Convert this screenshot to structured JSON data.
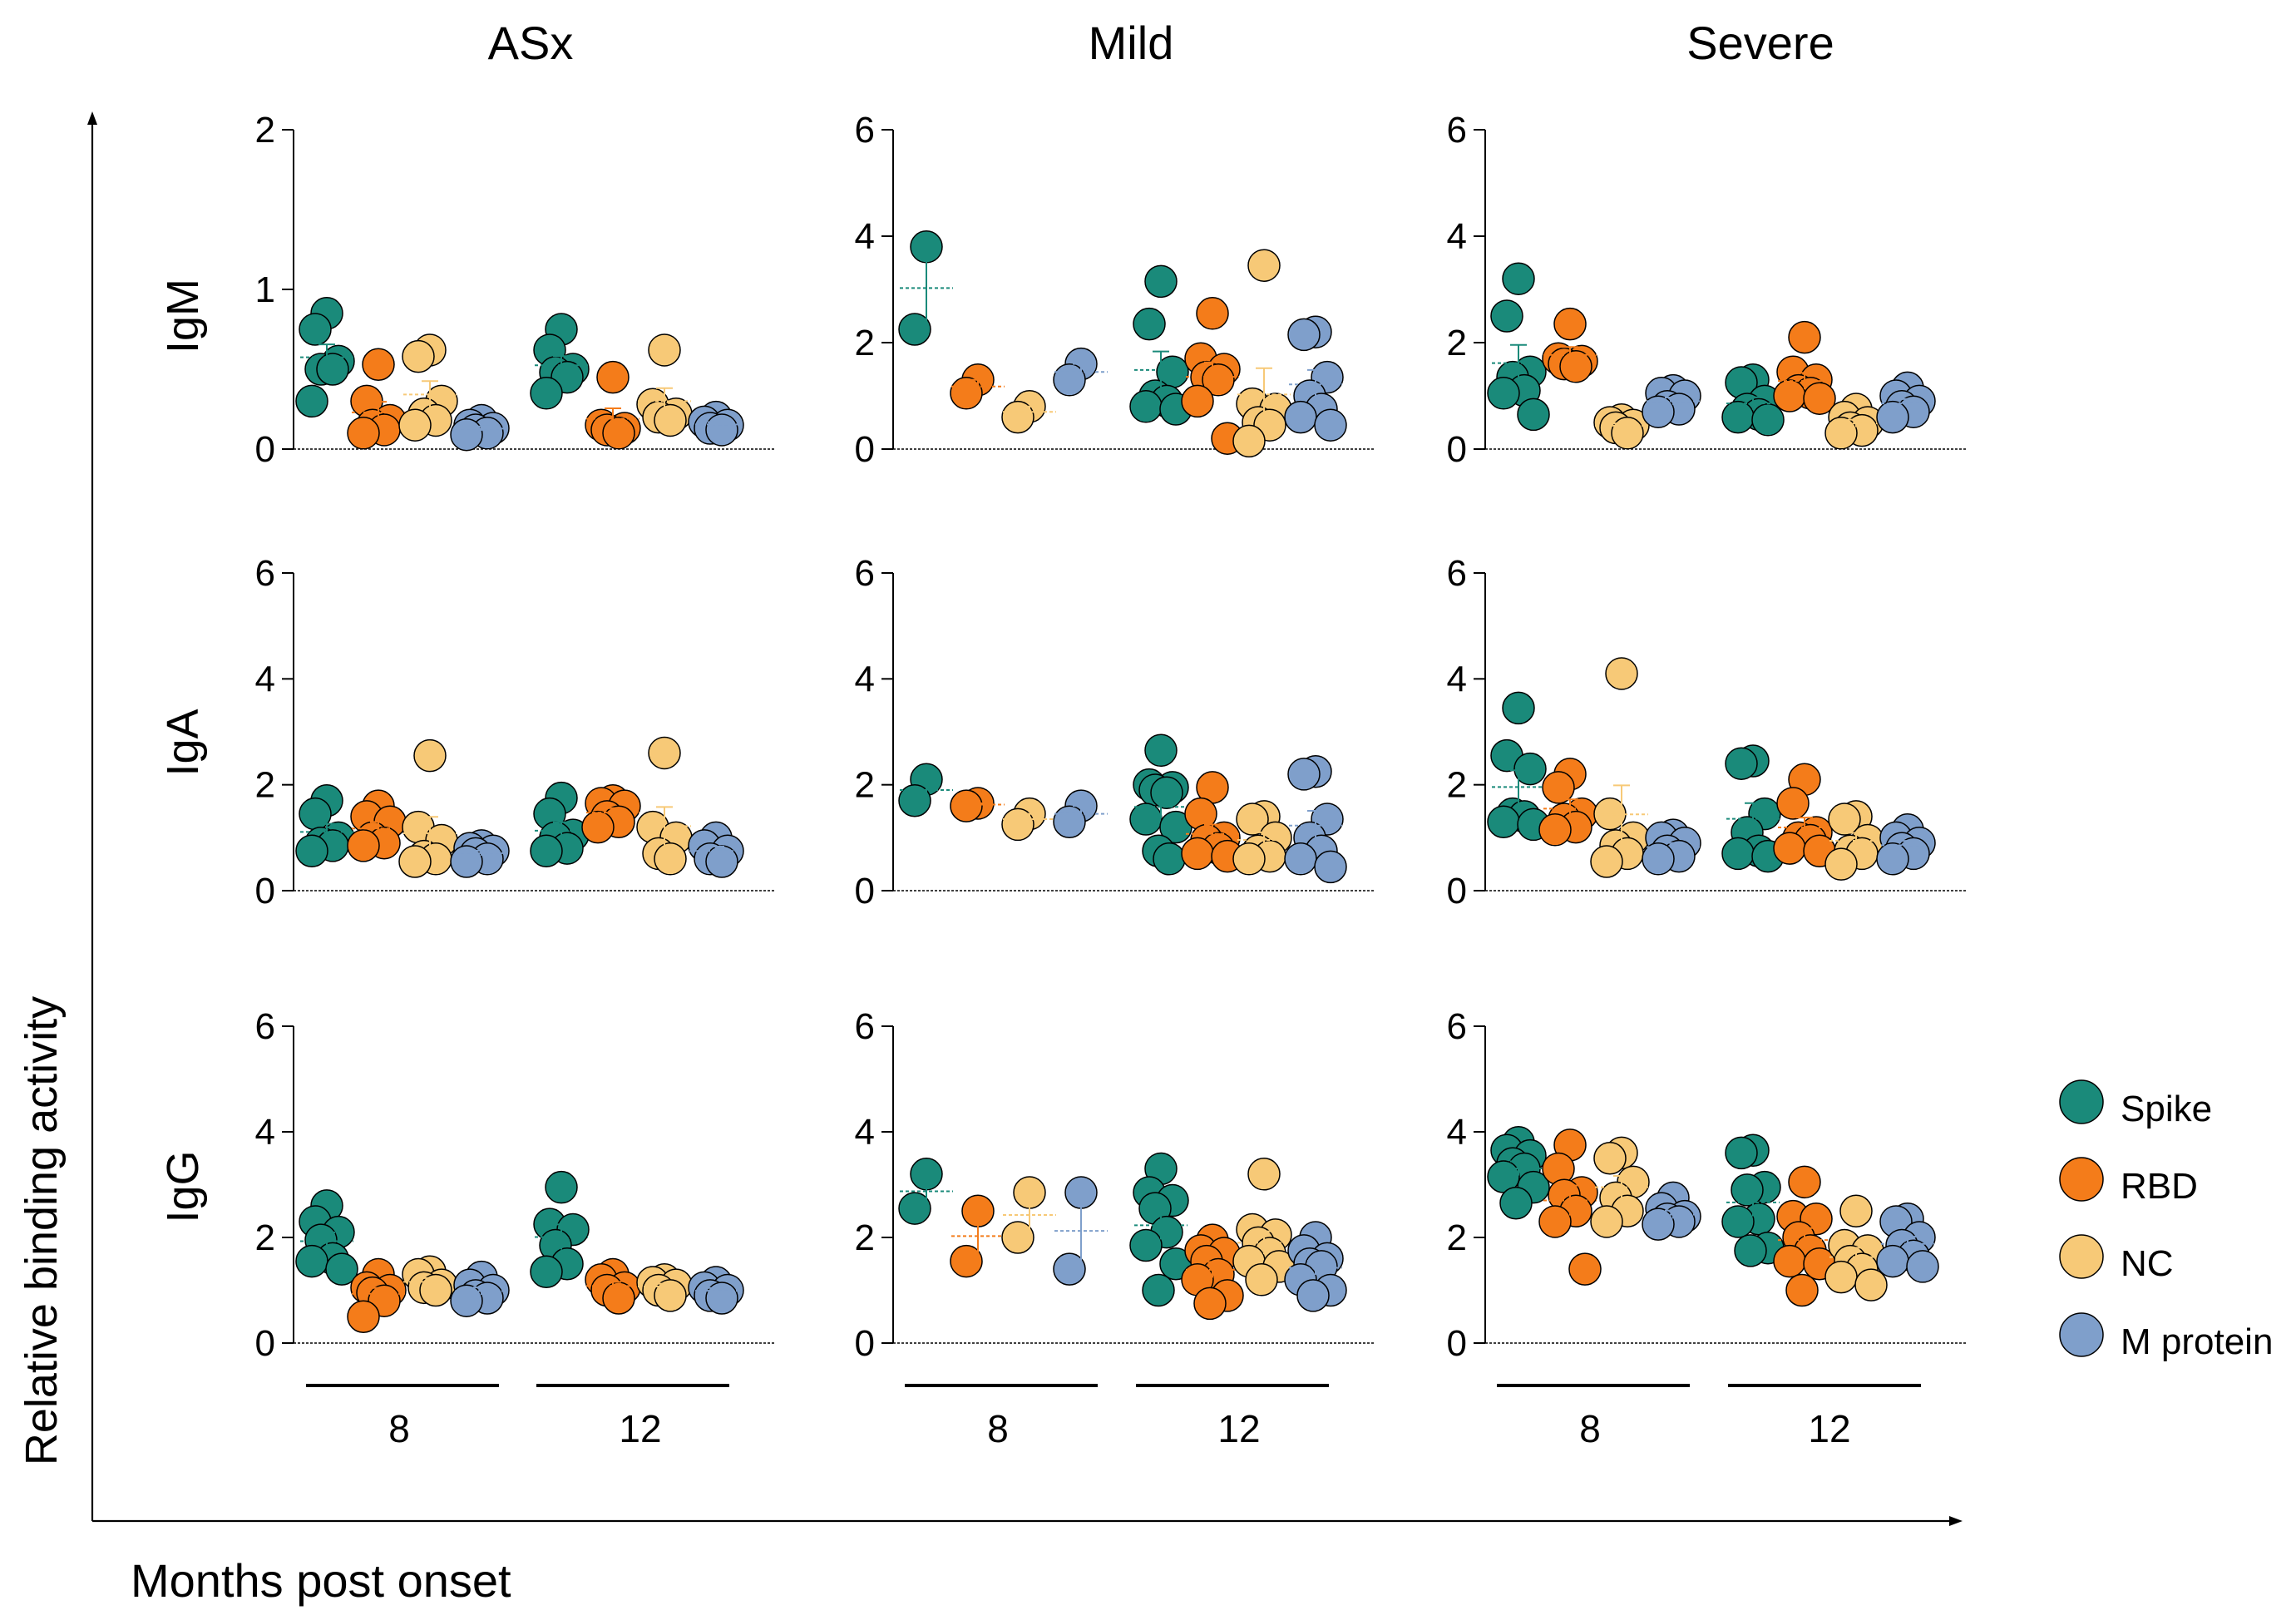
{
  "figure": {
    "y_axis_label": "Relative binding activity",
    "x_axis_label": "Months post onset",
    "columns": [
      "ASx",
      "Mild",
      "Severe"
    ],
    "rows": [
      "IgM",
      "IgA",
      "IgG"
    ],
    "time_labels": [
      "8",
      "12"
    ]
  },
  "legend": {
    "placement": "right",
    "items": [
      {
        "label": "Spike",
        "color": "#1a8a7a"
      },
      {
        "label": "RBD",
        "color": "#f47c1a"
      },
      {
        "label": "NC",
        "color": "#f7c977"
      },
      {
        "label": "M protein",
        "color": "#7f9fcb"
      }
    ]
  },
  "chart_data": {
    "type": "scatter",
    "series_names": [
      "Spike",
      "RBD",
      "NC",
      "M protein"
    ],
    "categories": [
      "8",
      "12"
    ],
    "panels": [
      {
        "row": "IgM",
        "column": "ASx",
        "ylim": [
          0,
          2
        ],
        "yticks": [
          0,
          1,
          2
        ],
        "values": {
          "8": {
            "Spike": [
              0.85,
              0.75,
              0.55,
              0.5,
              0.5,
              0.3
            ],
            "RBD": [
              0.53,
              0.3,
              0.18,
              0.15,
              0.12,
              0.1
            ],
            "NC": [
              0.62,
              0.58,
              0.3,
              0.22,
              0.18,
              0.15
            ],
            "M protein": [
              0.18,
              0.15,
              0.13,
              0.12,
              0.1,
              0.09
            ]
          },
          "12": {
            "Spike": [
              0.75,
              0.62,
              0.5,
              0.48,
              0.45,
              0.35
            ],
            "RBD": [
              0.45,
              0.15,
              0.13,
              0.12,
              0.1
            ],
            "NC": [
              0.62,
              0.28,
              0.22,
              0.2,
              0.18
            ],
            "M protein": [
              0.2,
              0.17,
              0.15,
              0.13,
              0.12
            ]
          }
        }
      },
      {
        "row": "IgM",
        "column": "Mild",
        "ylim": [
          0,
          6
        ],
        "yticks": [
          0,
          2,
          4,
          6
        ],
        "values": {
          "8": {
            "Spike": [
              3.8,
              2.25
            ],
            "RBD": [
              1.3,
              1.05
            ],
            "NC": [
              0.8,
              0.6
            ],
            "M protein": [
              1.6,
              1.3
            ]
          },
          "12": {
            "Spike": [
              3.15,
              2.35,
              1.45,
              1.0,
              0.9,
              0.8,
              0.75
            ],
            "RBD": [
              2.55,
              1.7,
              1.5,
              1.35,
              1.3,
              0.9,
              0.2
            ],
            "NC": [
              3.45,
              0.85,
              0.75,
              0.5,
              0.45,
              0.15
            ],
            "M protein": [
              2.2,
              2.15,
              1.35,
              1.0,
              0.75,
              0.6,
              0.45
            ]
          }
        }
      },
      {
        "row": "IgM",
        "column": "Severe",
        "ylim": [
          0,
          6
        ],
        "yticks": [
          0,
          2,
          4,
          6
        ],
        "values": {
          "8": {
            "Spike": [
              3.2,
              2.5,
              1.45,
              1.35,
              1.1,
              1.05,
              0.65
            ],
            "RBD": [
              2.35,
              1.7,
              1.65,
              1.6,
              1.55
            ],
            "NC": [
              0.55,
              0.5,
              0.45,
              0.4,
              0.3
            ],
            "M protein": [
              1.1,
              1.05,
              1.0,
              0.8,
              0.75,
              0.7
            ]
          },
          "12": {
            "Spike": [
              1.3,
              1.25,
              0.9,
              0.75,
              0.65,
              0.6,
              0.55
            ],
            "RBD": [
              2.1,
              1.45,
              1.3,
              1.1,
              1.05,
              1.0,
              0.95
            ],
            "NC": [
              0.75,
              0.6,
              0.5,
              0.4,
              0.35,
              0.3
            ],
            "M protein": [
              1.15,
              1.0,
              0.9,
              0.8,
              0.7,
              0.6
            ]
          }
        }
      },
      {
        "row": "IgA",
        "column": "ASx",
        "ylim": [
          0,
          6
        ],
        "yticks": [
          0,
          2,
          4,
          6
        ],
        "values": {
          "8": {
            "Spike": [
              1.7,
              1.45,
              1.0,
              0.9,
              0.85,
              0.75
            ],
            "RBD": [
              1.6,
              1.4,
              1.3,
              1.0,
              0.9,
              0.85
            ],
            "NC": [
              2.55,
              1.2,
              0.95,
              0.65,
              0.6,
              0.55
            ],
            "M protein": [
              0.85,
              0.8,
              0.75,
              0.7,
              0.6,
              0.55
            ]
          },
          "12": {
            "Spike": [
              1.75,
              1.45,
              1.05,
              1.0,
              0.8,
              0.75
            ],
            "RBD": [
              1.7,
              1.65,
              1.6,
              1.4,
              1.3,
              1.2
            ],
            "NC": [
              2.6,
              1.2,
              1.0,
              0.7,
              0.6
            ],
            "M protein": [
              1.0,
              0.85,
              0.75,
              0.6,
              0.55
            ]
          }
        }
      },
      {
        "row": "IgA",
        "column": "Mild",
        "ylim": [
          0,
          6
        ],
        "yticks": [
          0,
          2,
          4,
          6
        ],
        "values": {
          "8": {
            "Spike": [
              2.1,
              1.7
            ],
            "RBD": [
              1.65,
              1.6
            ],
            "NC": [
              1.45,
              1.25
            ],
            "M protein": [
              1.6,
              1.3
            ]
          },
          "12": {
            "Spike": [
              2.65,
              2.0,
              1.95,
              1.9,
              1.85,
              1.35,
              1.2,
              0.75,
              0.6
            ],
            "RBD": [
              1.95,
              1.45,
              1.0,
              0.95,
              0.8,
              0.7,
              0.65
            ],
            "NC": [
              1.4,
              1.35,
              1.0,
              0.75,
              0.65,
              0.6
            ],
            "M protein": [
              2.25,
              2.2,
              1.35,
              1.0,
              0.75,
              0.6,
              0.45
            ]
          }
        }
      },
      {
        "row": "IgA",
        "column": "Severe",
        "ylim": [
          0,
          6
        ],
        "yticks": [
          0,
          2,
          4,
          6
        ],
        "values": {
          "8": {
            "Spike": [
              3.45,
              2.55,
              2.3,
              1.45,
              1.4,
              1.3,
              1.25
            ],
            "RBD": [
              2.2,
              1.95,
              1.45,
              1.35,
              1.2,
              1.15
            ],
            "NC": [
              4.1,
              1.45,
              1.0,
              0.85,
              0.7,
              0.55
            ],
            "M protein": [
              1.05,
              1.0,
              0.9,
              0.75,
              0.65,
              0.6
            ]
          },
          "12": {
            "Spike": [
              2.45,
              2.4,
              1.45,
              1.1,
              0.75,
              0.7,
              0.65
            ],
            "RBD": [
              2.1,
              1.65,
              1.1,
              1.0,
              0.95,
              0.8,
              0.75
            ],
            "NC": [
              1.4,
              1.35,
              0.95,
              0.75,
              0.7,
              0.5
            ],
            "M protein": [
              1.15,
              1.0,
              0.9,
              0.8,
              0.7,
              0.6
            ]
          }
        }
      },
      {
        "row": "IgG",
        "column": "ASx",
        "ylim": [
          0,
          6
        ],
        "yticks": [
          0,
          2,
          4,
          6
        ],
        "values": {
          "8": {
            "Spike": [
              2.6,
              2.3,
              2.1,
              1.95,
              1.6,
              1.55,
              1.4
            ],
            "RBD": [
              1.3,
              1.05,
              1.0,
              0.95,
              0.8,
              0.5
            ],
            "NC": [
              1.35,
              1.3,
              1.1,
              1.05,
              1.0
            ],
            "M protein": [
              1.25,
              1.1,
              1.0,
              0.9,
              0.85,
              0.8
            ]
          },
          "12": {
            "Spike": [
              2.95,
              2.25,
              2.15,
              1.85,
              1.5,
              1.35
            ],
            "RBD": [
              1.3,
              1.2,
              1.05,
              1.0,
              0.85
            ],
            "NC": [
              1.2,
              1.15,
              1.1,
              1.0,
              0.9
            ],
            "M protein": [
              1.15,
              1.05,
              1.0,
              0.9,
              0.85
            ]
          }
        }
      },
      {
        "row": "IgG",
        "column": "Mild",
        "ylim": [
          0,
          6
        ],
        "yticks": [
          0,
          2,
          4,
          6
        ],
        "values": {
          "8": {
            "Spike": [
              3.2,
              2.55
            ],
            "RBD": [
              2.5,
              1.55
            ],
            "NC": [
              2.85,
              2.0
            ],
            "M protein": [
              2.85,
              1.4
            ]
          },
          "12": {
            "Spike": [
              3.3,
              2.85,
              2.7,
              2.55,
              2.1,
              1.85,
              1.5,
              1.0
            ],
            "RBD": [
              1.95,
              1.75,
              1.7,
              1.55,
              1.3,
              1.2,
              0.9,
              0.75
            ],
            "NC": [
              3.2,
              2.15,
              2.05,
              1.9,
              1.7,
              1.55,
              1.45,
              1.2
            ],
            "M protein": [
              2.0,
              1.75,
              1.6,
              1.5,
              1.45,
              1.2,
              1.0,
              0.9
            ]
          }
        }
      },
      {
        "row": "IgG",
        "column": "Severe",
        "ylim": [
          0,
          6
        ],
        "yticks": [
          0,
          2,
          4,
          6
        ],
        "values": {
          "8": {
            "Spike": [
              3.8,
              3.65,
              3.55,
              3.4,
              3.3,
              3.15,
              2.95,
              2.65
            ],
            "RBD": [
              3.75,
              3.3,
              2.85,
              2.8,
              2.5,
              2.3,
              1.4
            ],
            "NC": [
              3.6,
              3.5,
              3.05,
              2.75,
              2.5,
              2.3
            ],
            "M protein": [
              2.75,
              2.55,
              2.4,
              2.35,
              2.3,
              2.25
            ]
          },
          "12": {
            "Spike": [
              3.65,
              3.6,
              2.95,
              2.9,
              2.35,
              2.3,
              1.8,
              1.75
            ],
            "RBD": [
              3.05,
              2.4,
              2.35,
              2.0,
              1.75,
              1.55,
              1.5,
              1.0
            ],
            "NC": [
              2.5,
              1.85,
              1.75,
              1.55,
              1.4,
              1.25,
              1.1
            ],
            "M protein": [
              2.35,
              2.3,
              2.0,
              1.85,
              1.65,
              1.55,
              1.45
            ]
          }
        }
      }
    ]
  }
}
